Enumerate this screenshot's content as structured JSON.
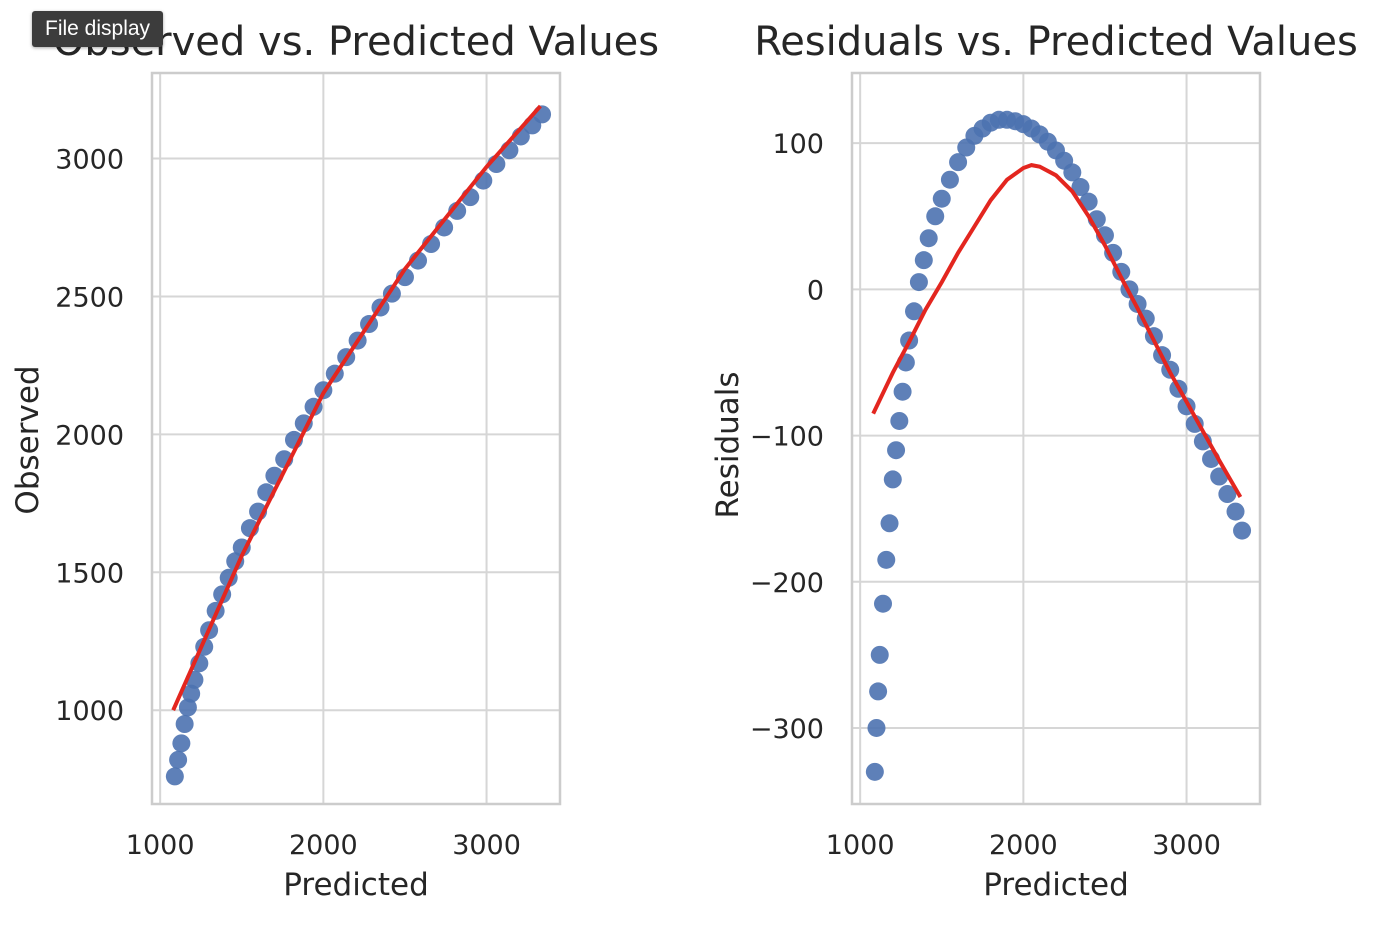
{
  "tooltip": {
    "label": "File display"
  },
  "colors": {
    "points": "#4c72b0",
    "fit_line": "#e3261f",
    "grid": "#d6d6d6",
    "frame": "#cccccc"
  },
  "chart_data": [
    {
      "type": "scatter",
      "title": "Observed vs. Predicted Values",
      "xlabel": "Predicted",
      "ylabel": "Observed",
      "xlim": [
        950,
        3450
      ],
      "ylim": [
        660,
        3310
      ],
      "xticks": [
        1000,
        2000,
        3000
      ],
      "yticks": [
        1000,
        1500,
        2000,
        2500,
        3000
      ],
      "grid": true,
      "series": [
        {
          "kind": "points",
          "x": [
            1090,
            1110,
            1130,
            1150,
            1170,
            1190,
            1210,
            1240,
            1270,
            1300,
            1340,
            1380,
            1420,
            1460,
            1500,
            1550,
            1600,
            1650,
            1700,
            1760,
            1820,
            1880,
            1940,
            2000,
            2070,
            2140,
            2210,
            2280,
            2350,
            2420,
            2500,
            2580,
            2660,
            2740,
            2820,
            2900,
            2980,
            3060,
            3140,
            3210,
            3280,
            3340
          ],
          "y": [
            760,
            820,
            880,
            950,
            1010,
            1060,
            1110,
            1170,
            1230,
            1290,
            1360,
            1420,
            1480,
            1540,
            1590,
            1660,
            1720,
            1790,
            1850,
            1910,
            1980,
            2040,
            2100,
            2160,
            2220,
            2280,
            2340,
            2400,
            2460,
            2510,
            2570,
            2630,
            2690,
            2750,
            2810,
            2860,
            2920,
            2980,
            3030,
            3080,
            3120,
            3160
          ]
        },
        {
          "kind": "line",
          "x": [
            1080,
            1500,
            2000,
            2500,
            3000,
            3330
          ],
          "y": [
            1000,
            1560,
            2150,
            2600,
            2970,
            3190
          ]
        }
      ]
    },
    {
      "type": "scatter",
      "title": "Residuals vs. Predicted Values",
      "xlabel": "Predicted",
      "ylabel": "Residuals",
      "xlim": [
        950,
        3450
      ],
      "ylim": [
        -352,
        148
      ],
      "xticks": [
        1000,
        2000,
        3000
      ],
      "yticks": [
        -300,
        -200,
        -100,
        0,
        100
      ],
      "grid": true,
      "series": [
        {
          "kind": "points",
          "x": [
            1090,
            1100,
            1110,
            1120,
            1140,
            1160,
            1180,
            1200,
            1220,
            1240,
            1260,
            1280,
            1300,
            1330,
            1360,
            1390,
            1420,
            1460,
            1500,
            1550,
            1600,
            1650,
            1700,
            1750,
            1800,
            1850,
            1900,
            1950,
            2000,
            2050,
            2100,
            2150,
            2200,
            2250,
            2300,
            2350,
            2400,
            2450,
            2500,
            2550,
            2600,
            2650,
            2700,
            2750,
            2800,
            2850,
            2900,
            2950,
            3000,
            3050,
            3100,
            3150,
            3200,
            3250,
            3300,
            3340
          ],
          "y": [
            -330,
            -300,
            -275,
            -250,
            -215,
            -185,
            -160,
            -130,
            -110,
            -90,
            -70,
            -50,
            -35,
            -15,
            5,
            20,
            35,
            50,
            62,
            75,
            87,
            97,
            105,
            110,
            114,
            116,
            116,
            115,
            113,
            110,
            106,
            101,
            95,
            88,
            80,
            70,
            60,
            48,
            37,
            25,
            12,
            0,
            -10,
            -20,
            -32,
            -45,
            -55,
            -68,
            -80,
            -92,
            -104,
            -116,
            -128,
            -140,
            -152,
            -165
          ]
        },
        {
          "kind": "line",
          "x": [
            1080,
            1200,
            1300,
            1400,
            1500,
            1600,
            1700,
            1800,
            1900,
            2000,
            2050,
            2100,
            2200,
            2300,
            2400,
            2500,
            2600,
            2700,
            2800,
            2900,
            3000,
            3100,
            3200,
            3330
          ],
          "y": [
            -85,
            -57,
            -36,
            -14,
            5,
            25,
            43,
            61,
            75,
            83,
            85,
            84,
            78,
            67,
            50,
            30,
            8,
            -13,
            -35,
            -57,
            -77,
            -97,
            -117,
            -142
          ]
        }
      ]
    }
  ]
}
